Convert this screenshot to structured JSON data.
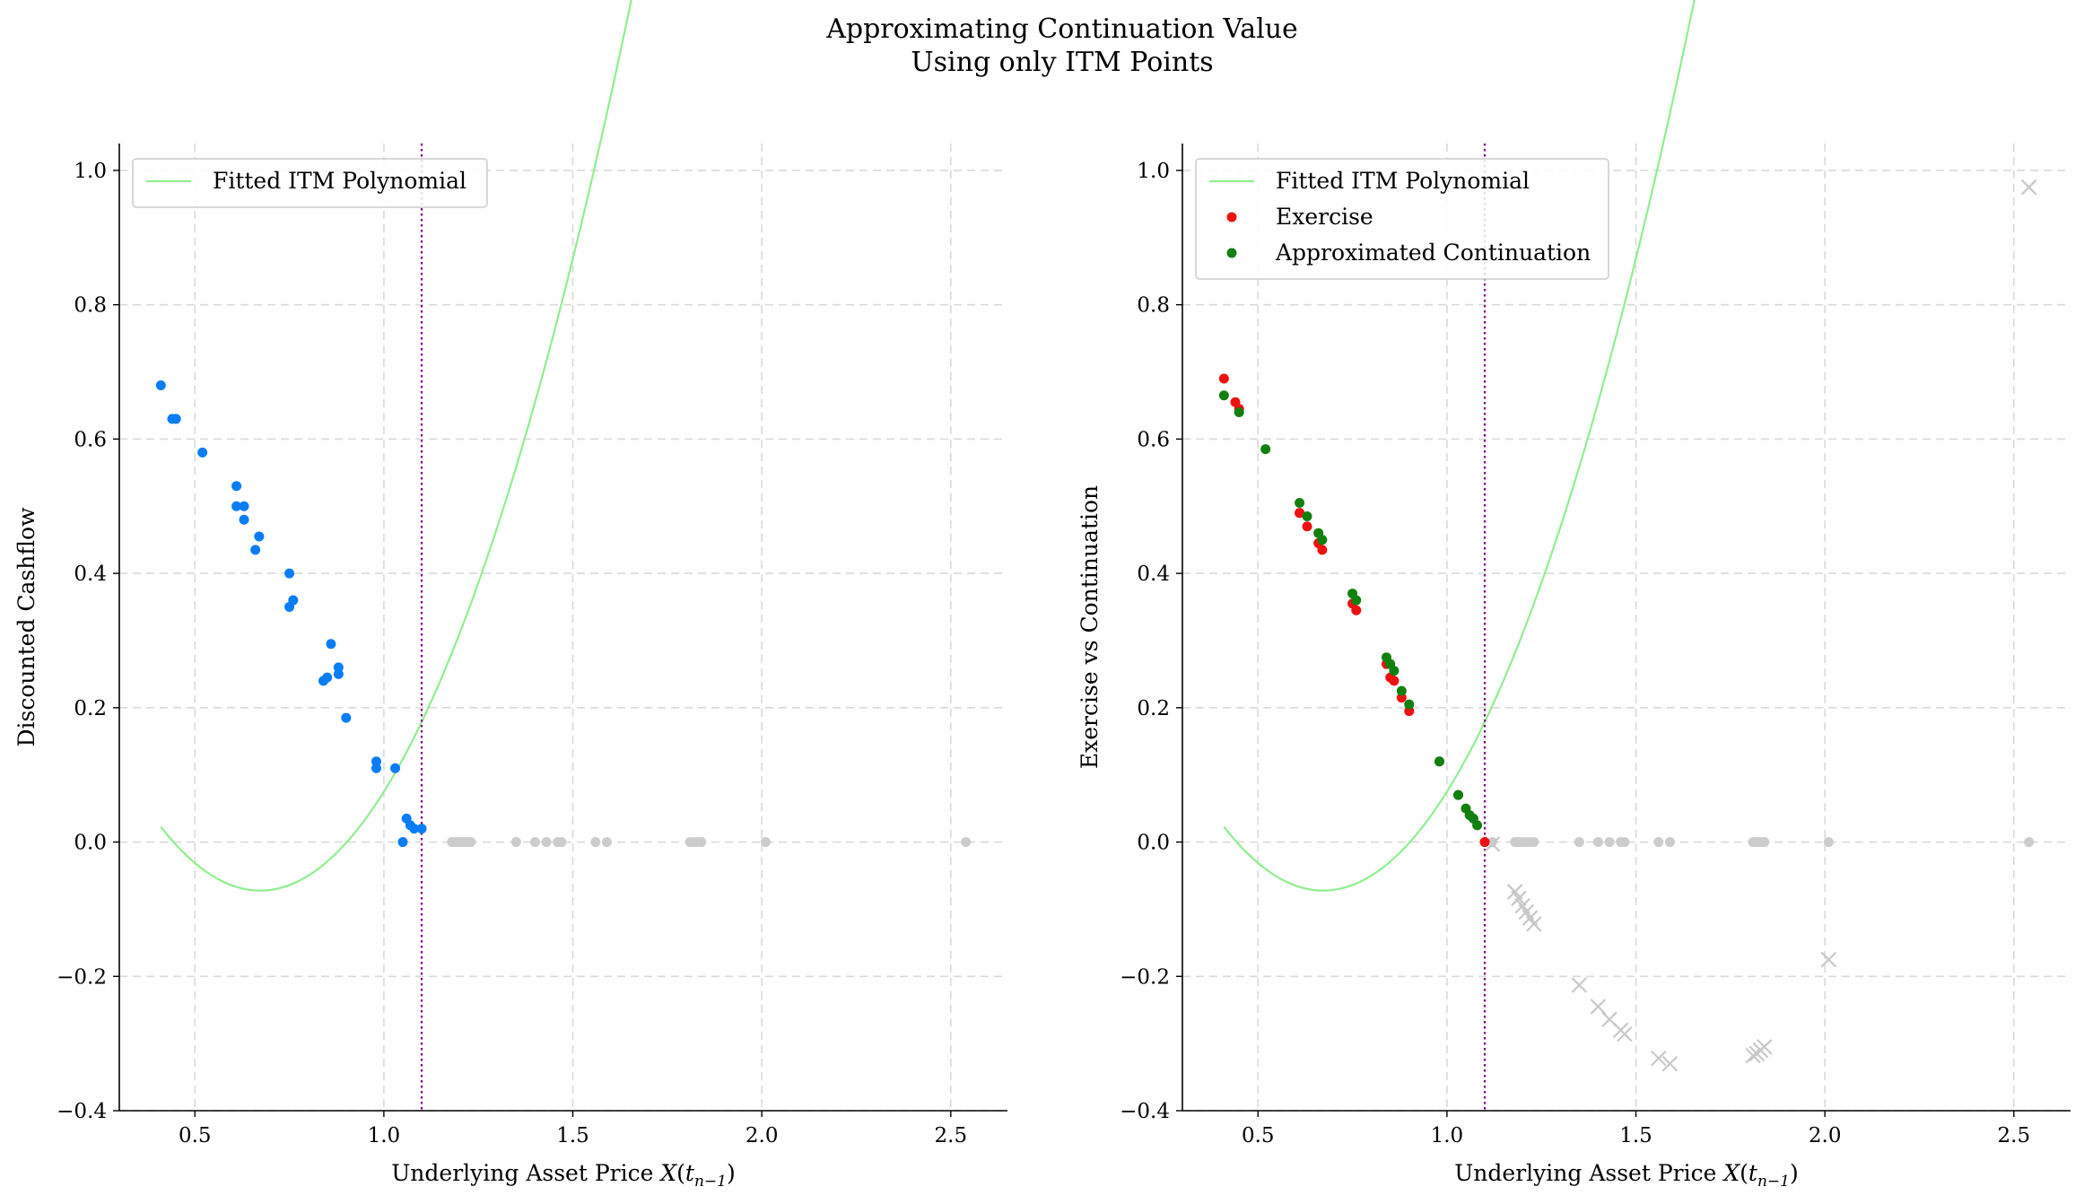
{
  "title_lines": [
    "Approximating Continuation Value",
    "Using only ITM Points"
  ],
  "colors": {
    "polynomial": "#90ee90",
    "itm_points": "#0a7df5",
    "exercise": "#ee1111",
    "continuation": "#118011",
    "otm": "#cccccc",
    "strike_line": "#800080",
    "grid": "#d9d9d9"
  },
  "chart_data": [
    {
      "type": "scatter",
      "title": "",
      "xlabel": "Underlying Asset Price X(t_{n-1})",
      "xlabel_main": "Underlying Asset Price ",
      "xlabel_var": "X",
      "xlabel_paren_open": "(",
      "xlabel_t": "t",
      "xlabel_sub": "n−1",
      "xlabel_paren_close": ")",
      "ylabel": "Discounted Cashflow",
      "xlim": [
        0.3,
        2.65
      ],
      "ylim": [
        -0.4,
        1.04
      ],
      "xticks": [
        0.5,
        1.0,
        1.5,
        2.0,
        2.5
      ],
      "xtick_labels": [
        "0.5",
        "1.0",
        "1.5",
        "2.0",
        "2.5"
      ],
      "yticks": [
        -0.4,
        -0.2,
        0.0,
        0.2,
        0.4,
        0.6,
        0.8,
        1.0
      ],
      "ytick_labels": [
        "−0.4",
        "−0.2",
        "0.0",
        "0.2",
        "0.4",
        "0.6",
        "0.8",
        "1.0"
      ],
      "grid": true,
      "legend_position": "top-left",
      "strike": 1.1,
      "polynomial": {
        "name": "Fitted ITM Polynomial",
        "coefficients": [
          1.375,
          -1.85,
          0.55
        ],
        "x_range": [
          0.41,
          2.49
        ]
      },
      "series": [
        {
          "name": "",
          "role": "itm",
          "x": [
            0.41,
            0.44,
            0.45,
            0.52,
            0.61,
            0.61,
            0.63,
            0.63,
            0.66,
            0.67,
            0.75,
            0.75,
            0.76,
            0.84,
            0.85,
            0.86,
            0.88,
            0.88,
            0.9,
            0.98,
            0.98,
            1.03,
            1.05,
            1.06,
            1.07,
            1.08,
            1.1
          ],
          "y": [
            0.68,
            0.63,
            0.63,
            0.58,
            0.53,
            0.5,
            0.5,
            0.48,
            0.435,
            0.455,
            0.4,
            0.35,
            0.36,
            0.24,
            0.245,
            0.295,
            0.26,
            0.25,
            0.185,
            0.12,
            0.11,
            0.11,
            0.0,
            0.035,
            0.025,
            0.02,
            0.02
          ]
        },
        {
          "name": "",
          "role": "otm",
          "x": [
            1.18,
            1.19,
            1.2,
            1.21,
            1.22,
            1.23,
            1.35,
            1.4,
            1.43,
            1.46,
            1.47,
            1.56,
            1.59,
            1.81,
            1.82,
            1.83,
            1.84,
            2.01,
            2.54
          ],
          "y": [
            0,
            0,
            0,
            0,
            0,
            0,
            0,
            0,
            0,
            0,
            0,
            0,
            0,
            0,
            0,
            0,
            0,
            0,
            0
          ]
        }
      ]
    },
    {
      "type": "scatter",
      "title": "",
      "xlabel": "Underlying Asset Price X(t_{n-1})",
      "xlabel_main": "Underlying Asset Price ",
      "xlabel_var": "X",
      "xlabel_paren_open": "(",
      "xlabel_t": "t",
      "xlabel_sub": "n−1",
      "xlabel_paren_close": ")",
      "ylabel": "Exercise vs Continuation",
      "xlim": [
        0.3,
        2.65
      ],
      "ylim": [
        -0.4,
        1.04
      ],
      "xticks": [
        0.5,
        1.0,
        1.5,
        2.0,
        2.5
      ],
      "xtick_labels": [
        "0.5",
        "1.0",
        "1.5",
        "2.0",
        "2.5"
      ],
      "yticks": [
        -0.4,
        -0.2,
        0.0,
        0.2,
        0.4,
        0.6,
        0.8,
        1.0
      ],
      "ytick_labels": [
        "−0.4",
        "−0.2",
        "0.0",
        "0.2",
        "0.4",
        "0.6",
        "0.8",
        "1.0"
      ],
      "grid": true,
      "legend_position": "top-left",
      "strike": 1.1,
      "polynomial": {
        "name": "Fitted ITM Polynomial",
        "coefficients": [
          1.375,
          -1.85,
          0.55
        ],
        "x_range": [
          0.41,
          2.54
        ]
      },
      "series": [
        {
          "name": "Exercise",
          "role": "exercise",
          "x": [
            0.41,
            0.44,
            0.45,
            0.61,
            0.61,
            0.63,
            0.66,
            0.67,
            0.75,
            0.76,
            0.84,
            0.85,
            0.86,
            0.88,
            0.9,
            0.98,
            1.03,
            1.1
          ],
          "y": [
            0.69,
            0.655,
            0.645,
            0.49,
            0.49,
            0.47,
            0.445,
            0.435,
            0.355,
            0.345,
            0.265,
            0.245,
            0.24,
            0.215,
            0.195,
            0.12,
            0.07,
            0.0
          ]
        },
        {
          "name": "Approximated Continuation",
          "role": "continuation",
          "x": [
            0.41,
            0.45,
            0.52,
            0.61,
            0.63,
            0.66,
            0.67,
            0.75,
            0.76,
            0.84,
            0.85,
            0.86,
            0.88,
            0.9,
            0.98,
            1.03,
            1.05,
            1.06,
            1.07,
            1.08
          ],
          "y": [
            0.665,
            0.64,
            0.585,
            0.505,
            0.485,
            0.46,
            0.45,
            0.37,
            0.36,
            0.275,
            0.265,
            0.255,
            0.225,
            0.205,
            0.12,
            0.07,
            0.05,
            0.04,
            0.035,
            0.025
          ]
        },
        {
          "name": "",
          "role": "otm",
          "x": [
            1.12,
            1.18,
            1.19,
            1.2,
            1.21,
            1.22,
            1.23,
            1.35,
            1.4,
            1.43,
            1.46,
            1.47,
            1.56,
            1.59,
            1.81,
            1.82,
            1.83,
            1.84,
            2.01,
            2.54
          ],
          "y": [
            0,
            0,
            0,
            0,
            0,
            0,
            0,
            0,
            0,
            0,
            0,
            0,
            0,
            0,
            0,
            0,
            0,
            0,
            0,
            0
          ]
        },
        {
          "name": "",
          "role": "otm-continuation",
          "x": [
            1.12,
            1.18,
            1.19,
            1.2,
            1.21,
            1.22,
            1.23,
            1.35,
            1.4,
            1.43,
            1.46,
            1.47,
            1.56,
            1.59,
            1.81,
            1.82,
            1.83,
            1.84,
            2.01,
            2.54
          ],
          "y": [
            -0.003,
            -0.074,
            -0.084,
            -0.095,
            -0.104,
            -0.113,
            -0.122,
            -0.213,
            -0.245,
            -0.264,
            -0.28,
            -0.286,
            -0.322,
            -0.33,
            -0.318,
            -0.315,
            -0.31,
            -0.305,
            -0.175,
            0.975
          ]
        }
      ]
    }
  ]
}
